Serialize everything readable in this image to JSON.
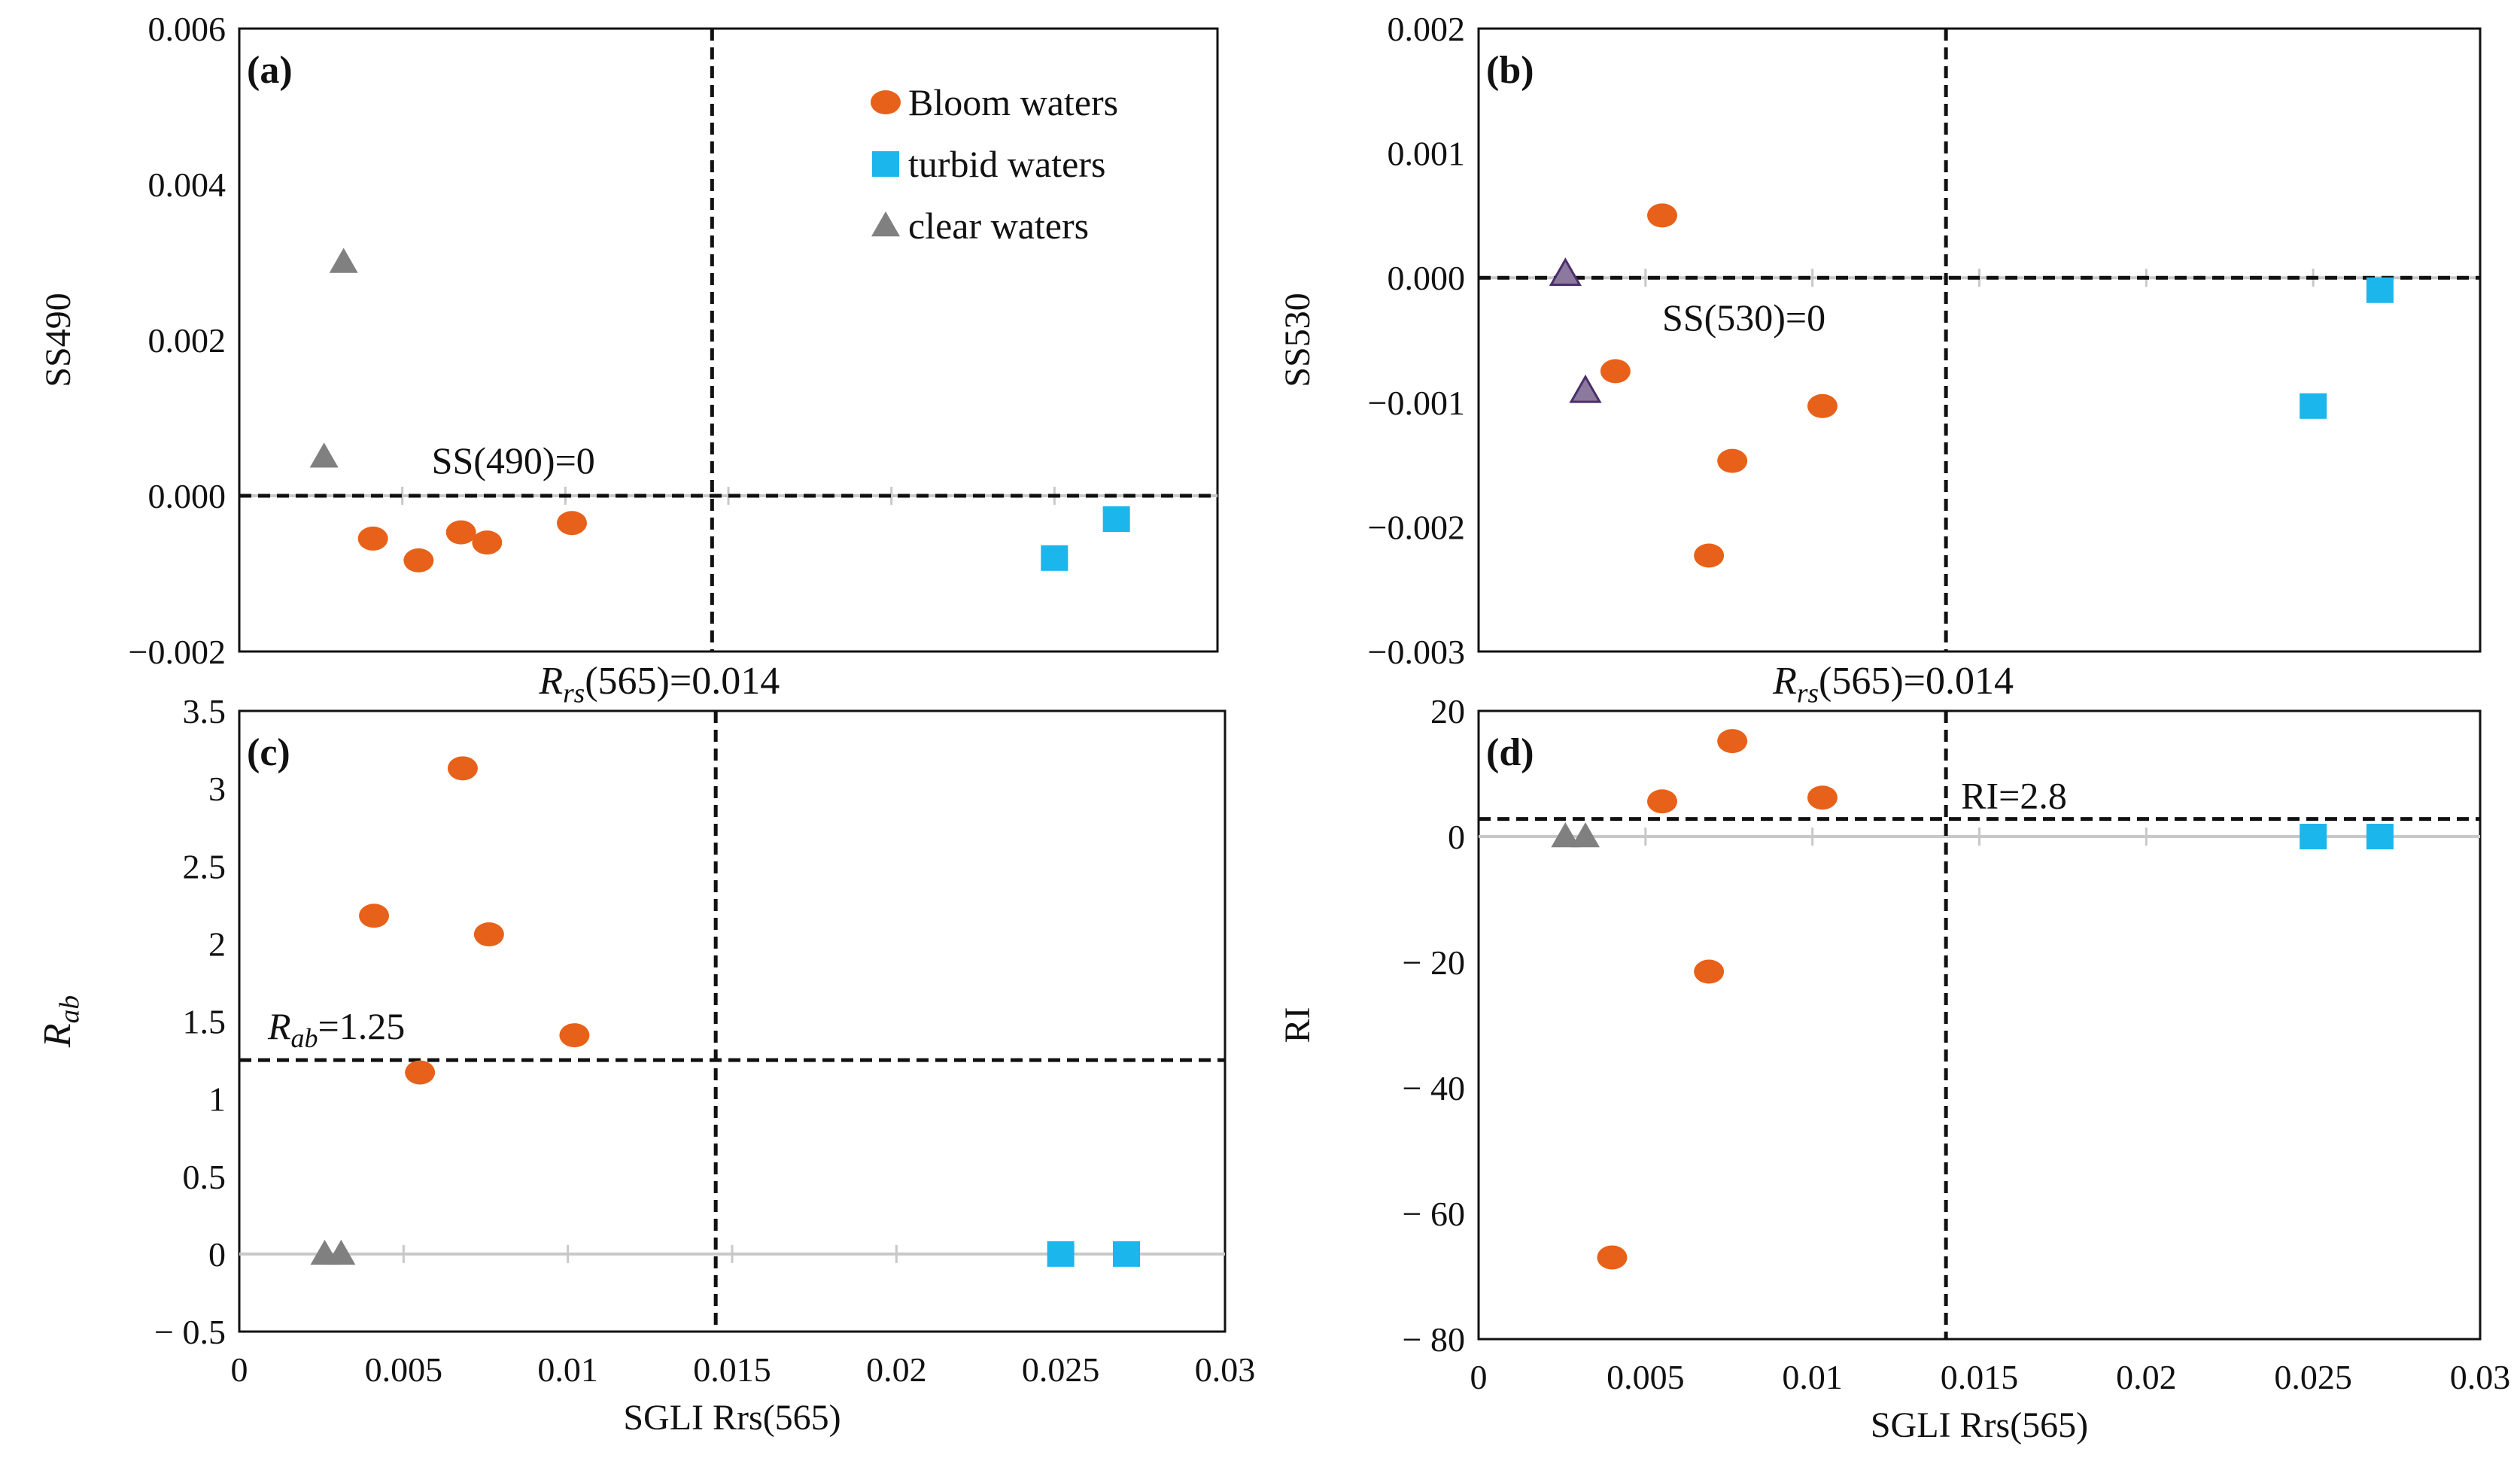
{
  "colors": {
    "bloom": "#E8611A",
    "turbid": "#1BB6EC",
    "clear": "#808080",
    "clear_b": "#8C7A9E",
    "clear_b_edge": "#4B2E6A"
  },
  "legend": {
    "bloom": "Bloom waters",
    "turbid": "turbid waters",
    "clear": "clear waters"
  },
  "chart_data": [
    {
      "type": "scatter",
      "panel": "(a)",
      "ylabel": "SS490",
      "xlabel": "",
      "xlim": [
        0,
        0.03
      ],
      "ylim": [
        -0.002,
        0.006
      ],
      "yticks": [
        "−0.002",
        "0.000",
        "0.002",
        "0.004",
        "0.006"
      ],
      "xticks": [],
      "hline": {
        "y": 0,
        "label": "SS(490)=0",
        "style": "dashed"
      },
      "vline": {
        "x": 0.0145,
        "label": "Rrs(565)=0.014"
      },
      "series": [
        {
          "name": "Bloom waters",
          "x": [
            0.0041,
            0.0055,
            0.0068,
            0.0076,
            0.0102
          ],
          "y": [
            -0.00055,
            -0.00083,
            -0.00047,
            -0.0006,
            -0.00035
          ]
        },
        {
          "name": "turbid waters",
          "x": [
            0.025,
            0.0269
          ],
          "y": [
            -0.0008,
            -0.0003
          ]
        },
        {
          "name": "clear waters",
          "x": [
            0.0026,
            0.0032
          ],
          "y": [
            0.0005,
            0.003
          ]
        }
      ]
    },
    {
      "type": "scatter",
      "panel": "(b)",
      "ylabel": "SS530",
      "xlabel": "",
      "xlim": [
        0,
        0.03
      ],
      "ylim": [
        -0.003,
        0.002
      ],
      "yticks": [
        "−0.003",
        "−0.002",
        "−0.001",
        "0.000",
        "0.001",
        "0.002"
      ],
      "xticks": [],
      "hline": {
        "y": 0,
        "label": "SS(530)=0",
        "style": "dashed"
      },
      "vline": {
        "x": 0.014,
        "label": "Rrs(565)=0.014"
      },
      "series": [
        {
          "name": "Bloom waters",
          "x": [
            0.0041,
            0.0055,
            0.0069,
            0.0076,
            0.0103
          ],
          "y": [
            -0.00075,
            0.0005,
            -0.00223,
            -0.00147,
            -0.00103
          ]
        },
        {
          "name": "turbid waters",
          "x": [
            0.025,
            0.027
          ],
          "y": [
            -0.00103,
            -0.0001
          ]
        },
        {
          "name": "clear waters",
          "x": [
            0.0026,
            0.0032
          ],
          "y": [
            3e-05,
            -0.00091
          ]
        }
      ]
    },
    {
      "type": "scatter",
      "panel": "(c)",
      "ylabel": "Rab",
      "xlabel": "SGLI Rrs(565)",
      "xlim": [
        0,
        0.03
      ],
      "ylim": [
        -0.5,
        3.5
      ],
      "yticks": [
        "− 0.5",
        "0",
        "0.5",
        "1",
        "1.5",
        "2",
        "2.5",
        "3",
        "3.5"
      ],
      "xticks": [
        "0",
        "0.005",
        "0.01",
        "0.015",
        "0.02",
        "0.025",
        "0.03"
      ],
      "hline": {
        "y": 1.25,
        "label": "Rab=1.25",
        "style": "dashed"
      },
      "vline": {
        "x": 0.0145
      },
      "series": [
        {
          "name": "Bloom waters",
          "x": [
            0.0041,
            0.0055,
            0.0068,
            0.0076,
            0.0102
          ],
          "y": [
            2.18,
            1.17,
            3.13,
            2.06,
            1.41
          ]
        },
        {
          "name": "turbid waters",
          "x": [
            0.025,
            0.027
          ],
          "y": [
            0,
            0
          ]
        },
        {
          "name": "clear waters",
          "x": [
            0.0026,
            0.0031
          ],
          "y": [
            0,
            0
          ]
        }
      ]
    },
    {
      "type": "scatter",
      "panel": "(d)",
      "ylabel": "RI",
      "xlabel": "SGLI Rrs(565)",
      "xlim": [
        0,
        0.03
      ],
      "ylim": [
        -80,
        20
      ],
      "yticks": [
        "− 80",
        "− 60",
        "− 40",
        "− 20",
        "0",
        "20"
      ],
      "xticks": [
        "0",
        "0.005",
        "0.01",
        "0.015",
        "0.02",
        "0.025",
        "0.03"
      ],
      "hline": {
        "y": 2.8,
        "label": "RI=2.8",
        "style": "dashed"
      },
      "vline": {
        "x": 0.014
      },
      "series": [
        {
          "name": "Bloom waters",
          "x": [
            0.004,
            0.0055,
            0.0069,
            0.0076,
            0.0103
          ],
          "y": [
            -67,
            5.6,
            -21.5,
            15.2,
            6.2
          ]
        },
        {
          "name": "turbid waters",
          "x": [
            0.025,
            0.027
          ],
          "y": [
            0,
            0
          ]
        },
        {
          "name": "clear waters",
          "x": [
            0.0026,
            0.0032
          ],
          "y": [
            0,
            0
          ]
        }
      ]
    }
  ]
}
